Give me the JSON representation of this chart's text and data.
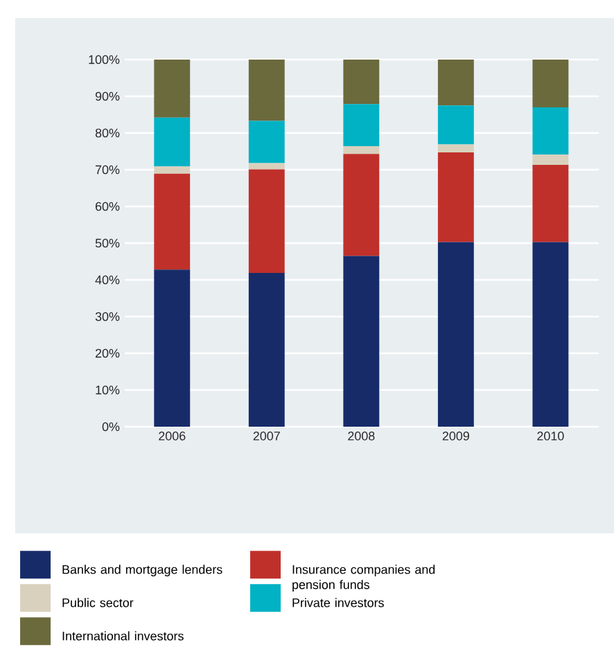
{
  "chart_data": {
    "type": "bar",
    "stacked": true,
    "categories": [
      "2006",
      "2007",
      "2008",
      "2009",
      "2010"
    ],
    "series": [
      {
        "name": "Banks and mortgage lenders",
        "color": "#172b69",
        "values": [
          42.8,
          41.9,
          46.5,
          50.3,
          50.3
        ]
      },
      {
        "name": "Insurance companies and pension funds",
        "color": "#c0302a",
        "values": [
          26.1,
          28.2,
          27.8,
          24.4,
          21.0
        ]
      },
      {
        "name": "Public sector",
        "color": "#d9d1bd",
        "values": [
          2.0,
          1.7,
          2.1,
          2.2,
          2.8
        ]
      },
      {
        "name": "Private investors",
        "color": "#00b2c4",
        "values": [
          13.3,
          11.5,
          11.5,
          10.6,
          12.9
        ]
      },
      {
        "name": "International investors",
        "color": "#6b6a3d",
        "values": [
          15.8,
          16.7,
          12.1,
          12.5,
          13.0
        ]
      }
    ],
    "ylim": [
      0,
      100
    ],
    "yticks": [
      {
        "value": 0,
        "label": "0%"
      },
      {
        "value": 10,
        "label": "10%"
      },
      {
        "value": 20,
        "label": "20%"
      },
      {
        "value": 30,
        "label": "30%"
      },
      {
        "value": 40,
        "label": "40%"
      },
      {
        "value": 50,
        "label": "50%"
      },
      {
        "value": 60,
        "label": "60%"
      },
      {
        "value": 70,
        "label": "70%"
      },
      {
        "value": 80,
        "label": "80%"
      },
      {
        "value": 90,
        "label": "90%"
      },
      {
        "value": 100,
        "label": "100%"
      }
    ],
    "grid": "y",
    "legend": "bottom"
  }
}
